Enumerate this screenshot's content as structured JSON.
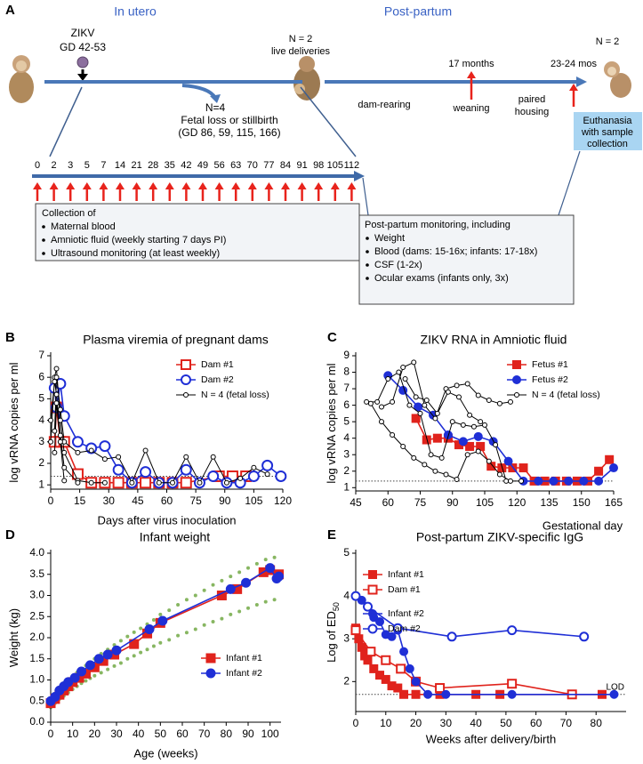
{
  "timeline": {
    "panel": "A",
    "in_utero": "In utero",
    "post_partum": "Post-partum",
    "zikv": "ZIKV",
    "gd": "GD 42-53",
    "n4": "N=4",
    "fetal_loss": "Fetal loss or stillbirth",
    "fetal_gd": "(GD 86, 59, 115, 166)",
    "n2_live": "N = 2",
    "live": "live deliveries",
    "months17": "17 months",
    "dam_rearing": "dam-rearing",
    "weaning": "weaning",
    "paired": "paired",
    "housing": "housing",
    "mos": "23-24 mos",
    "n2_end": "N = 2",
    "euth1": "Euthanasia",
    "euth2": "with sample",
    "euth3": "collection",
    "days": [
      0,
      2,
      3,
      5,
      7,
      14,
      21,
      28,
      35,
      42,
      49,
      56,
      63,
      70,
      77,
      84,
      91,
      98,
      105,
      112
    ],
    "collection": {
      "title": "Collection of",
      "items": [
        "Maternal blood",
        "Amniotic fluid (weekly starting 7 days PI)",
        "Ultrasound monitoring (at least weekly)"
      ]
    },
    "postpartum": {
      "title": "Post-partum monitoring, including",
      "items": [
        "Weight",
        "Blood (dams: 15-16x; infants: 17-18x)",
        "CSF (1-2x)",
        "Ocular exams (infants only, 3x)"
      ]
    }
  },
  "chart_data": [
    {
      "type": "line",
      "panel": "B",
      "title": "Plasma viremia of pregnant dams",
      "xlabel": "Days after virus inoculation",
      "ylabel": "log vRNA copies per ml",
      "xlim": [
        0,
        120
      ],
      "xticks": [
        0,
        15,
        30,
        45,
        60,
        75,
        90,
        105,
        120
      ],
      "ylim": [
        0.8,
        7
      ],
      "yticks": [
        1,
        2,
        3,
        4,
        5,
        6,
        7
      ],
      "lod": 1.4,
      "legend": "top-right",
      "series": [
        {
          "name": "Dam #1",
          "color": "#e0231c",
          "marker": "square",
          "filled": false,
          "x": [
            2,
            3,
            5,
            7,
            14,
            21,
            28,
            35,
            42,
            49,
            56,
            63,
            70,
            87,
            94,
            101
          ],
          "values": [
            3.0,
            4.6,
            3.0,
            3.0,
            1.5,
            1.1,
            1.1,
            1.1,
            1.1,
            1.1,
            1.1,
            1.1,
            1.1,
            1.4,
            1.4,
            1.4
          ]
        },
        {
          "name": "Dam #2",
          "color": "#1f2fd6",
          "marker": "circle",
          "filled": false,
          "x": [
            2,
            3,
            5,
            7,
            14,
            21,
            28,
            35,
            42,
            49,
            56,
            63,
            70,
            77,
            84,
            91,
            98,
            105,
            112,
            119
          ],
          "values": [
            5.5,
            4.6,
            5.7,
            4.2,
            3.0,
            2.7,
            2.8,
            1.7,
            1.1,
            1.6,
            1.1,
            1.1,
            1.7,
            1.1,
            1.4,
            1.1,
            1.1,
            1.4,
            1.9,
            1.4
          ]
        },
        {
          "name": "N = 4 (fetal loss)",
          "color": "#000000",
          "marker": "circle",
          "filled": false,
          "x": [
            0,
            2,
            3,
            5,
            7,
            14,
            21,
            28,
            null,
            0,
            2,
            3,
            5,
            7,
            14,
            null,
            2,
            3,
            5,
            7,
            14,
            21,
            28,
            35,
            42,
            49,
            56,
            63,
            70,
            77,
            84,
            91,
            98,
            105,
            112,
            null,
            2,
            3,
            5,
            7
          ],
          "values": [
            3.0,
            6.0,
            6.4,
            4.0,
            2.5,
            1.2,
            1.1,
            1.1,
            null,
            4.0,
            5.8,
            5.2,
            3.3,
            1.8,
            1.1,
            null,
            3.5,
            6.0,
            4.5,
            3.0,
            2.5,
            2.6,
            2.2,
            2.3,
            1.1,
            2.6,
            1.1,
            1.1,
            2.3,
            1.1,
            2.3,
            1.1,
            1.3,
            1.8,
            1.5,
            null,
            2.5,
            4.8,
            3.0,
            1.2
          ]
        }
      ]
    },
    {
      "type": "line",
      "panel": "C",
      "title": "ZIKV RNA in Amniotic fluid",
      "xlabel": "Gestational day",
      "ylabel": "log vRNA copies per ml",
      "xlim": [
        45,
        165
      ],
      "xticks": [
        45,
        60,
        75,
        90,
        105,
        120,
        135,
        150,
        165
      ],
      "ylim": [
        0.8,
        9
      ],
      "yticks": [
        1,
        2,
        3,
        4,
        5,
        6,
        7,
        8,
        9
      ],
      "lod": 1.4,
      "legend": "top-right",
      "series": [
        {
          "name": "Fetus #1",
          "color": "#e0231c",
          "marker": "square",
          "filled": true,
          "x": [
            73,
            78,
            83,
            88,
            93,
            98,
            103,
            108,
            113,
            118,
            123,
            128,
            133,
            138,
            143,
            148,
            153,
            158,
            163
          ],
          "values": [
            5.2,
            3.9,
            4.0,
            4.0,
            3.6,
            3.5,
            3.5,
            2.3,
            2.2,
            2.2,
            2.2,
            1.4,
            1.4,
            1.4,
            1.4,
            1.4,
            1.4,
            2.0,
            2.7
          ]
        },
        {
          "name": "Fetus #2",
          "color": "#1f2fd6",
          "marker": "circle",
          "filled": true,
          "x": [
            60,
            67,
            74,
            81,
            88,
            95,
            102,
            109,
            116,
            123,
            130,
            137,
            144,
            151,
            158,
            165
          ],
          "values": [
            7.8,
            6.9,
            5.9,
            5.4,
            4.2,
            3.8,
            4.1,
            3.8,
            2.6,
            1.4,
            1.4,
            1.4,
            1.4,
            1.4,
            1.4,
            2.2
          ]
        },
        {
          "name": "N = 4 (fetal loss)",
          "color": "#000000",
          "marker": "circle",
          "filled": false,
          "x": [
            50,
            55,
            60,
            65,
            70,
            75,
            80,
            85,
            90,
            95,
            100,
            105,
            110,
            115,
            null,
            57,
            62,
            67,
            72,
            77,
            82,
            87,
            92,
            97,
            102,
            107,
            112,
            117,
            null,
            52,
            57,
            62,
            67,
            72,
            77,
            82,
            87,
            92,
            97,
            102,
            107,
            112,
            117,
            122,
            null,
            68,
            73,
            78,
            83,
            88,
            93,
            98,
            103
          ],
          "values": [
            6.2,
            6.2,
            7.6,
            8.0,
            6.0,
            5.5,
            3.0,
            2.8,
            5.0,
            4.8,
            4.7,
            4.8,
            3.6,
            1.4,
            null,
            5.9,
            6.2,
            8.3,
            8.6,
            6.0,
            5.2,
            7.0,
            7.2,
            7.3,
            6.6,
            6.3,
            6.1,
            6.2,
            null,
            6.1,
            5.0,
            4.2,
            3.5,
            2.8,
            2.4,
            2.0,
            1.8,
            1.5,
            3.0,
            3.2,
            2.6,
            1.8,
            1.4,
            1.4,
            null,
            7.6,
            6.5,
            6.3,
            5.5,
            6.8,
            6.5,
            5.4,
            5.0
          ]
        }
      ]
    },
    {
      "type": "line",
      "panel": "D",
      "title": "Infant weight",
      "xlabel": "Age (weeks)",
      "ylabel": "Weight (kg)",
      "xlim": [
        0,
        105
      ],
      "xticks": [
        0,
        10,
        20,
        30,
        40,
        50,
        60,
        70,
        80,
        90,
        100
      ],
      "ylim": [
        0,
        4
      ],
      "yticks": [
        {
          "value": 0,
          "label": "0.0"
        },
        0.5,
        {
          "value": 1,
          "label": "1.0"
        },
        1.5,
        {
          "value": 2,
          "label": "2.0"
        },
        2.5,
        {
          "value": 3,
          "label": "3.0"
        },
        3.5,
        {
          "value": 4,
          "label": "4.0"
        }
      ],
      "legend": "bottom-right",
      "cloud": {
        "color": "#5f9e2c",
        "x": [
          0,
          0,
          2,
          2,
          4,
          4,
          6,
          6,
          8,
          8,
          10,
          10,
          12,
          12,
          14,
          14,
          16,
          16,
          18,
          18,
          20,
          20,
          23,
          23,
          26,
          26,
          29,
          29,
          32,
          32,
          35,
          35,
          38,
          38,
          41,
          41,
          44,
          44,
          47,
          47,
          50,
          50,
          54,
          54,
          58,
          58,
          62,
          62,
          66,
          66,
          70,
          70,
          74,
          74,
          78,
          78,
          82,
          82,
          86,
          86,
          90,
          90,
          94,
          94,
          98,
          98,
          102,
          102
        ],
        "values": [
          0.35,
          0.55,
          0.45,
          0.68,
          0.55,
          0.82,
          0.62,
          0.93,
          0.7,
          1.02,
          0.78,
          1.1,
          0.85,
          1.18,
          0.92,
          1.27,
          0.98,
          1.34,
          1.04,
          1.42,
          1.1,
          1.5,
          1.17,
          1.62,
          1.25,
          1.72,
          1.33,
          1.83,
          1.4,
          1.93,
          1.5,
          2.03,
          1.57,
          2.13,
          1.65,
          2.22,
          1.72,
          2.32,
          1.8,
          2.42,
          1.88,
          2.55,
          1.95,
          2.65,
          2.05,
          2.78,
          2.12,
          2.9,
          2.2,
          3.0,
          2.3,
          3.12,
          2.38,
          3.25,
          2.45,
          3.35,
          2.55,
          3.45,
          2.62,
          3.55,
          2.7,
          3.65,
          2.78,
          3.75,
          2.85,
          3.85,
          2.9,
          3.9
        ]
      },
      "series": [
        {
          "name": "Infant #1",
          "color": "#e0231c",
          "marker": "square",
          "filled": true,
          "x": [
            0,
            2,
            4,
            6,
            8,
            10,
            13,
            16,
            20,
            24,
            29,
            38,
            44,
            50,
            78,
            85,
            97,
            100,
            104
          ],
          "values": [
            0.45,
            0.55,
            0.65,
            0.75,
            0.85,
            0.95,
            1.05,
            1.15,
            1.3,
            1.45,
            1.6,
            1.85,
            2.1,
            2.35,
            3.0,
            3.15,
            3.55,
            3.6,
            3.5
          ]
        },
        {
          "name": "Infant #2",
          "color": "#1f2fd6",
          "marker": "circle",
          "filled": true,
          "x": [
            0,
            2,
            4,
            6,
            8,
            11,
            14,
            18,
            22,
            26,
            30,
            45,
            51,
            82,
            89,
            100,
            103,
            104
          ],
          "values": [
            0.5,
            0.6,
            0.75,
            0.85,
            0.95,
            1.05,
            1.2,
            1.35,
            1.5,
            1.6,
            1.7,
            2.2,
            2.4,
            3.15,
            3.3,
            3.65,
            3.4,
            3.45
          ]
        }
      ]
    },
    {
      "type": "line",
      "panel": "E",
      "title": "Post-partum ZIKV-specific IgG",
      "xlabel": "Weeks after delivery/birth",
      "ylabel": "Log of ED",
      "ylabel_sub": "50",
      "xlim": [
        0,
        90
      ],
      "xticks": [
        0,
        10,
        20,
        30,
        40,
        50,
        60,
        70,
        80
      ],
      "ylim": [
        1.3,
        5
      ],
      "yticks": [
        2,
        3,
        4,
        5
      ],
      "lod": 1.7,
      "lod_label": "LOD",
      "legend": "top-left",
      "series": [
        {
          "name": "Infant #1",
          "color": "#e0231c",
          "marker": "square",
          "filled": true,
          "x": [
            0,
            1,
            2,
            3,
            4,
            6,
            8,
            10,
            12,
            14,
            16,
            20,
            28,
            40,
            48,
            82
          ],
          "values": [
            3.25,
            3.0,
            2.8,
            2.6,
            2.5,
            2.3,
            2.15,
            2.05,
            1.9,
            1.85,
            1.7,
            1.7,
            1.7,
            1.7,
            1.7,
            1.7
          ]
        },
        {
          "name": "Dam #1",
          "color": "#e0231c",
          "marker": "square",
          "filled": false,
          "x": [
            0,
            5,
            10,
            15,
            20,
            28,
            52,
            72
          ],
          "values": [
            3.2,
            2.7,
            2.5,
            2.3,
            2.0,
            1.85,
            1.95,
            1.7
          ]
        },
        {
          "name": "Infant #2",
          "color": "#1f2fd6",
          "marker": "circle",
          "filled": true,
          "x": [
            0,
            2,
            4,
            6,
            8,
            10,
            12,
            14,
            16,
            18,
            20,
            24,
            30,
            52,
            86
          ],
          "values": [
            4.0,
            3.9,
            3.75,
            3.5,
            3.4,
            3.1,
            3.05,
            3.2,
            2.7,
            2.3,
            2.0,
            1.7,
            1.7,
            1.7,
            1.7
          ]
        },
        {
          "name": "Dam #2",
          "color": "#1f2fd6",
          "marker": "circle",
          "filled": false,
          "x": [
            0,
            4,
            14,
            32,
            52,
            76
          ],
          "values": [
            4.0,
            3.75,
            3.25,
            3.05,
            3.2,
            3.05
          ]
        }
      ]
    }
  ]
}
